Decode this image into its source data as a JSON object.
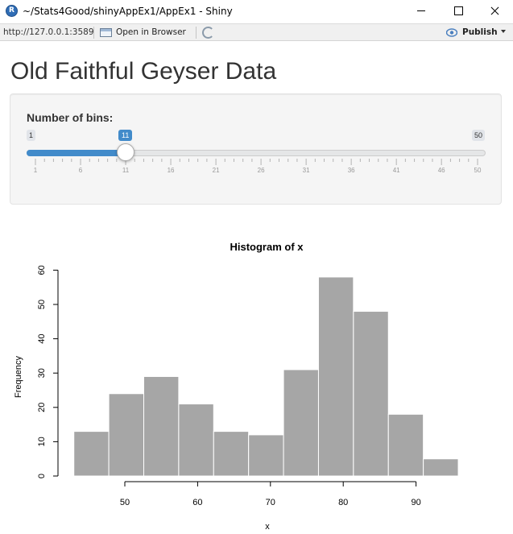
{
  "window": {
    "title": "~/Stats4Good/shinyAppEx1/AppEx1 - Shiny"
  },
  "toolbar": {
    "url": "http://127.0.0.1:3589",
    "open_in_browser": "Open in Browser",
    "publish": "Publish"
  },
  "app": {
    "title": "Old Faithful Geyser Data"
  },
  "slider": {
    "label": "Number of bins:",
    "min": 1,
    "max": 50,
    "value": 11,
    "min_label": "1",
    "max_label": "50",
    "value_label": "11",
    "grid_labels": [
      "1",
      "6",
      "11",
      "16",
      "21",
      "26",
      "31",
      "36",
      "41",
      "46",
      "50"
    ],
    "accent": "#428bca"
  },
  "chart_data": {
    "type": "bar",
    "title": "Histogram of x",
    "xlabel": "x",
    "ylabel": "Frequency",
    "bin_edges": [
      43.0,
      47.8,
      52.6,
      57.4,
      62.2,
      67.0,
      71.8,
      76.6,
      81.4,
      86.2,
      91.0,
      95.8
    ],
    "values": [
      13,
      24,
      29,
      21,
      13,
      12,
      31,
      58,
      48,
      18,
      5
    ],
    "x_ticks": [
      "50",
      "60",
      "70",
      "80",
      "90"
    ],
    "y_ticks": [
      "0",
      "10",
      "20",
      "30",
      "40",
      "50",
      "60"
    ],
    "ylim": [
      0,
      60
    ],
    "bar_color": "#a6a6a6",
    "bar_border": "#ffffff"
  }
}
